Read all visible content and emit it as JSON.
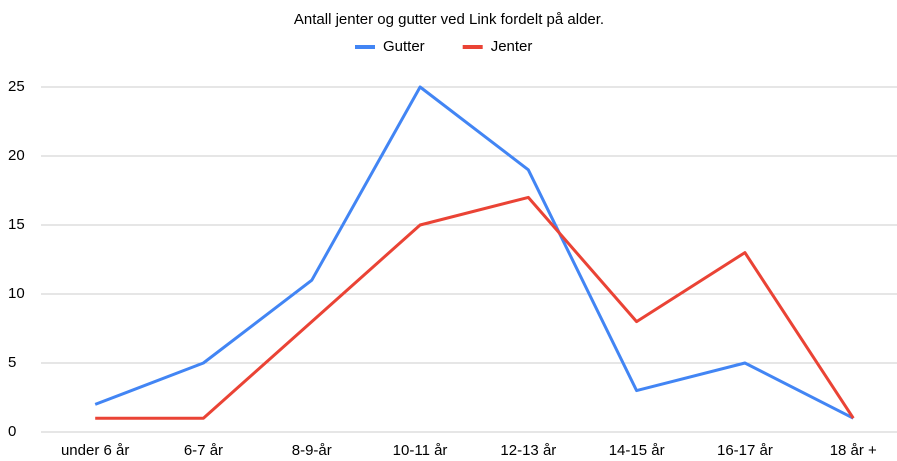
{
  "chart_data": {
    "type": "line",
    "title": "Antall jenter og gutter ved Link fordelt på alder.",
    "categories": [
      "under 6 år",
      "6-7 år",
      "8-9-år",
      "10-11 år",
      "12-13 år",
      "14-15 år",
      "16-17 år",
      "18 år +"
    ],
    "series": [
      {
        "name": "Gutter",
        "color": "#4285f4",
        "values": [
          2,
          5,
          11,
          25,
          19,
          3,
          5,
          1
        ]
      },
      {
        "name": "Jenter",
        "color": "#ea4335",
        "values": [
          1,
          1,
          8,
          15,
          17,
          8,
          13,
          1
        ]
      }
    ],
    "ylim": [
      0,
      25
    ],
    "yticks": [
      0,
      5,
      10,
      15,
      20,
      25
    ],
    "grid": true,
    "legend": "top"
  }
}
